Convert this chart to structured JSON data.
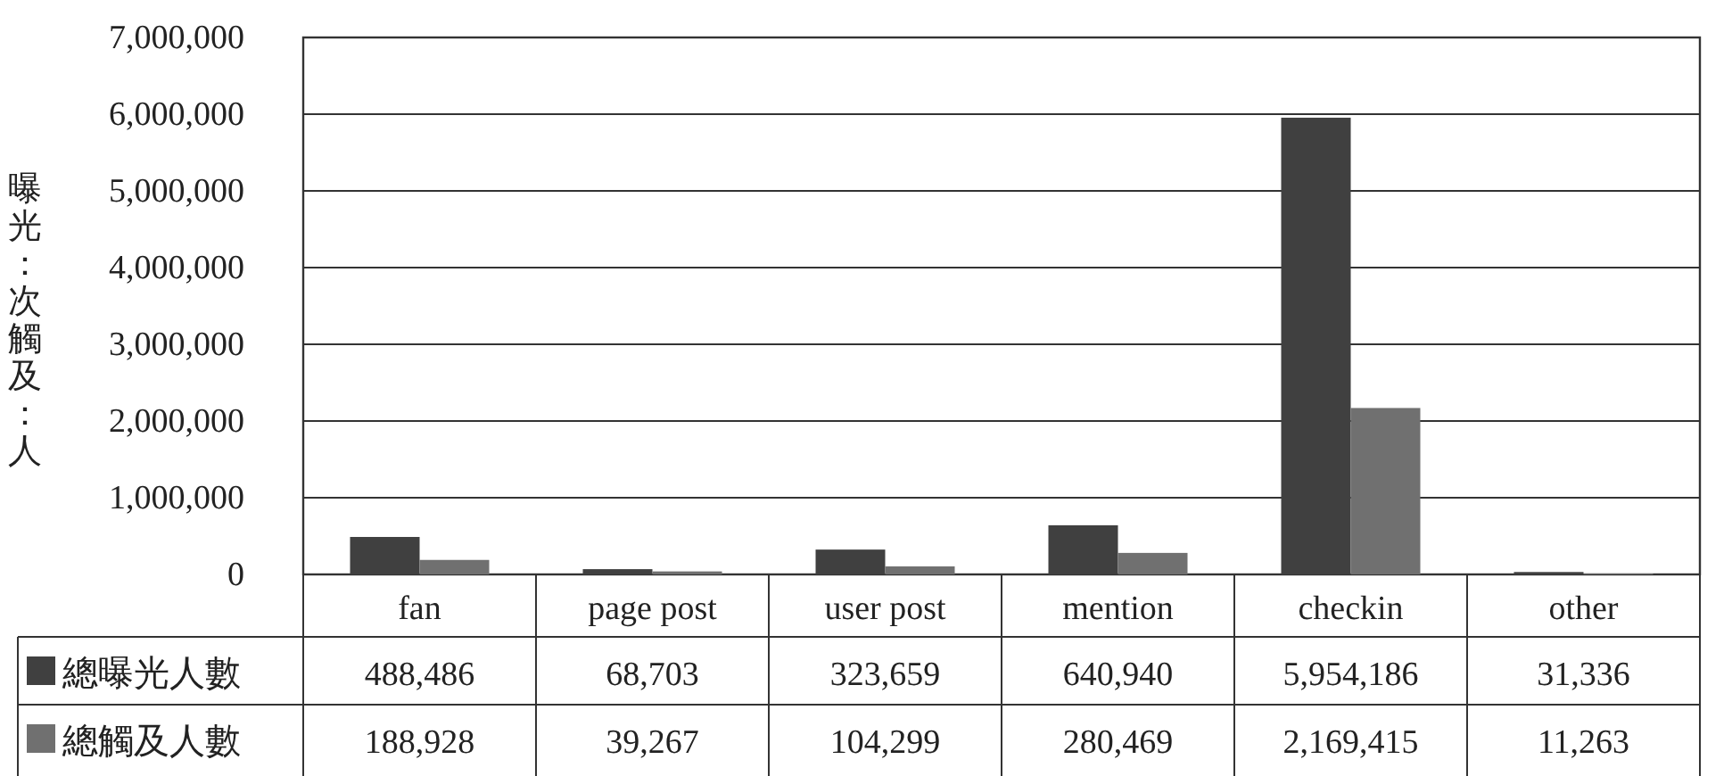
{
  "chart_data": {
    "type": "bar",
    "ylabel": "曝光：次觸及：人",
    "categories": [
      "fan",
      "page post",
      "user post",
      "mention",
      "checkin",
      "other"
    ],
    "series": [
      {
        "name": "總曝光人數",
        "color": "#404040",
        "values": [
          488486,
          68703,
          323659,
          640940,
          5954186,
          31336
        ],
        "value_labels": [
          "488,486",
          "68,703",
          "323,659",
          "640,940",
          "5,954,186",
          "31,336"
        ]
      },
      {
        "name": "總觸及人數",
        "color": "#707070",
        "values": [
          188928,
          39267,
          104299,
          280469,
          2169415,
          11263
        ],
        "value_labels": [
          "188,928",
          "39,267",
          "104,299",
          "280,469",
          "2,169,415",
          "11,263"
        ]
      }
    ],
    "ylim": [
      0,
      7000000
    ],
    "yticks": [
      {
        "value": 0,
        "label": "0"
      },
      {
        "value": 1000000,
        "label": "1,000,000"
      },
      {
        "value": 2000000,
        "label": "2,000,000"
      },
      {
        "value": 3000000,
        "label": "3,000,000"
      },
      {
        "value": 4000000,
        "label": "4,000,000"
      },
      {
        "value": 5000000,
        "label": "5,000,000"
      },
      {
        "value": 6000000,
        "label": "6,000,000"
      },
      {
        "value": 7000000,
        "label": "7,000,000"
      }
    ],
    "grid": "y",
    "legend": "bottom left"
  }
}
